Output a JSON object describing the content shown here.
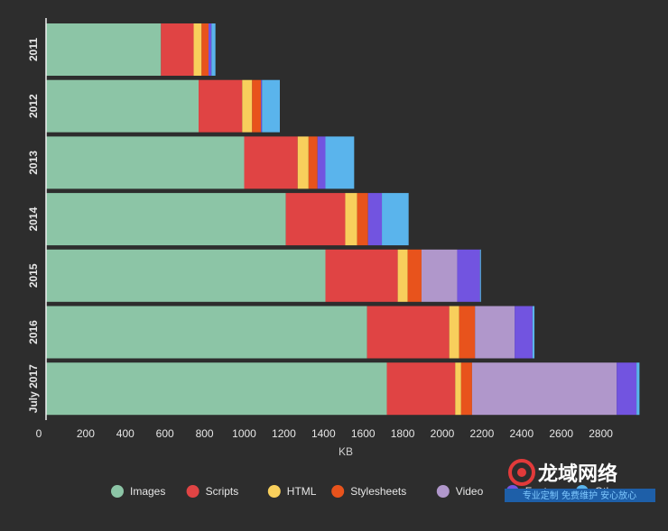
{
  "chart_data": {
    "type": "bar",
    "orientation": "horizontal",
    "stacked": true,
    "title": "",
    "xlabel": "KB",
    "ylabel": "",
    "xlim": [
      0,
      2990
    ],
    "xticks": [
      0,
      200,
      400,
      600,
      800,
      1000,
      1200,
      1400,
      1600,
      1800,
      2000,
      2200,
      2400,
      2600,
      2800
    ],
    "categories": [
      "2011",
      "2012",
      "2013",
      "2014",
      "2015",
      "2016",
      "July 2017"
    ],
    "series": [
      {
        "name": "Images",
        "color": "#8cc5a6",
        "values": [
          580,
          770,
          1000,
          1210,
          1410,
          1620,
          1720
        ]
      },
      {
        "name": "Scripts",
        "color": "#e04444",
        "values": [
          165,
          220,
          270,
          300,
          365,
          415,
          345
        ]
      },
      {
        "name": "HTML",
        "color": "#f8cf5c",
        "values": [
          40,
          50,
          55,
          60,
          50,
          50,
          30
        ]
      },
      {
        "name": "Stylesheets",
        "color": "#e8531c",
        "values": [
          35,
          45,
          45,
          55,
          70,
          80,
          55
        ]
      },
      {
        "name": "Video",
        "color": "#b097cb",
        "values": [
          0,
          0,
          0,
          0,
          180,
          200,
          730
        ]
      },
      {
        "name": "Fonts",
        "color": "#7254e0",
        "values": [
          15,
          5,
          40,
          70,
          115,
          90,
          100
        ]
      },
      {
        "name": "Other",
        "color": "#5ab4ec",
        "values": [
          20,
          90,
          145,
          135,
          5,
          10,
          15
        ]
      }
    ],
    "legend": {
      "position": "bottom"
    },
    "grid": false
  },
  "watermark": {
    "main": "龙域网络",
    "sub": "专业定制 免费维护 安心放心"
  },
  "style": {
    "background": "#2d2d2d",
    "text": "#e6e6e6",
    "axis": "#f0f0f0"
  }
}
